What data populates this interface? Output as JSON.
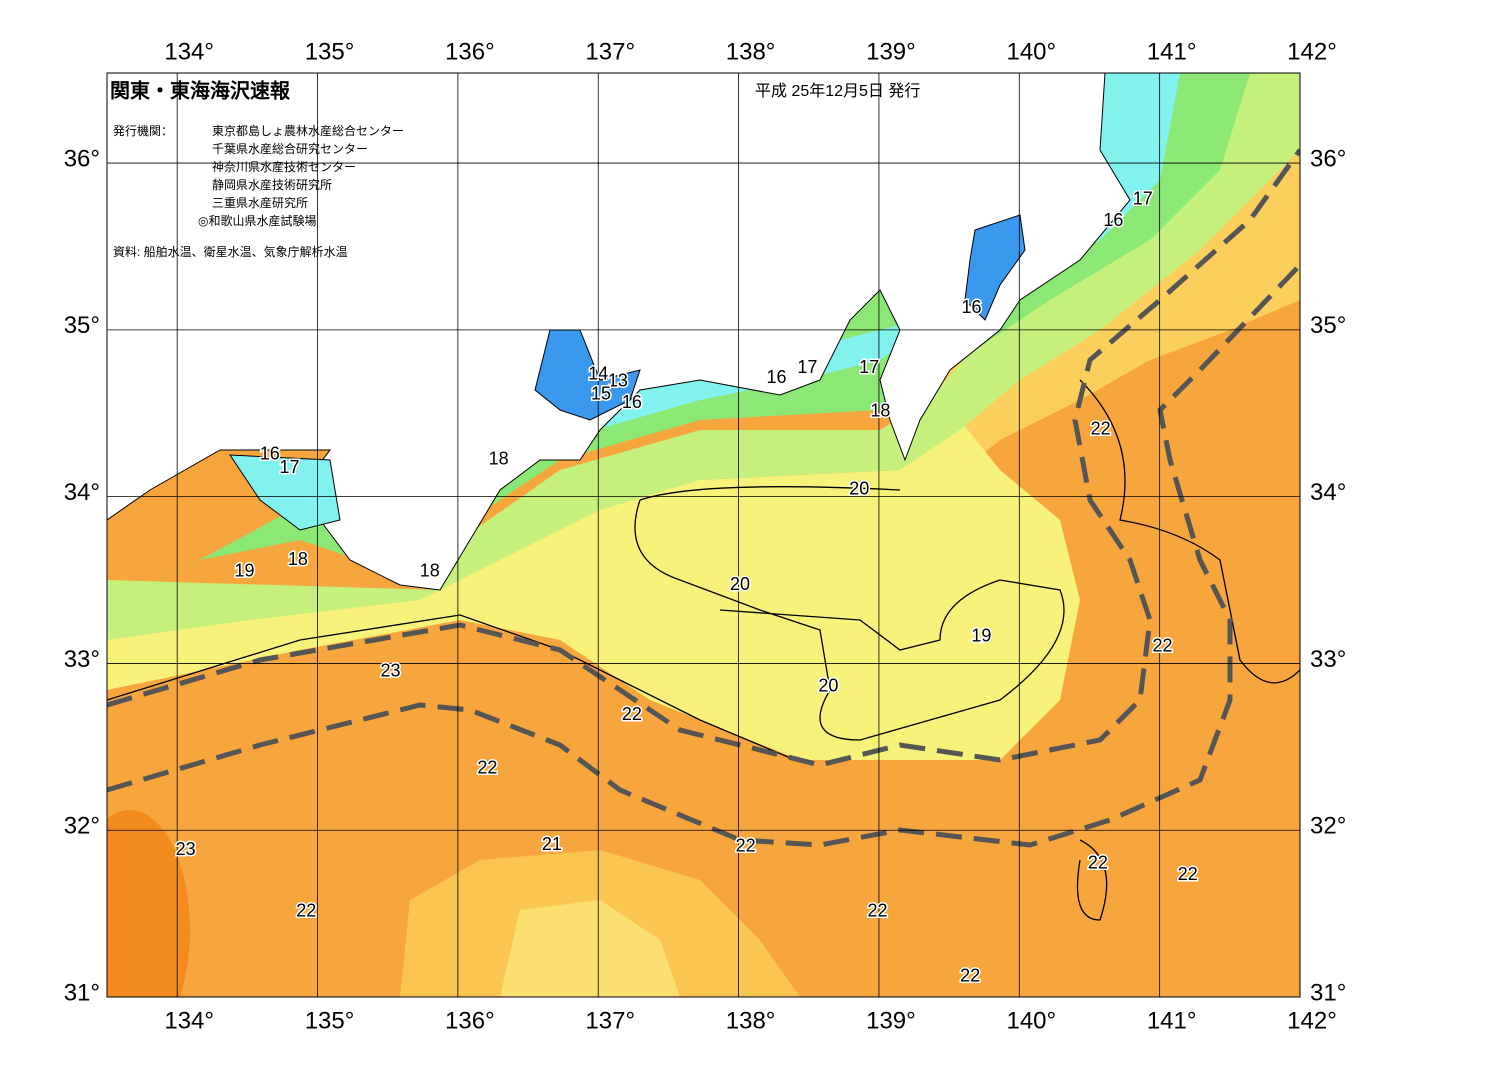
{
  "header": {
    "title": "関東・東海海沢速報",
    "date": "平成 25年12月5日 発行"
  },
  "issuers": {
    "label": "発行機関：",
    "items": [
      "東京都島しょ農林水産総合センター",
      "千葉県水産総合研究センター",
      "神奈川県水産技術センター",
      "静岡県水産技術研究所",
      "三重県水産研究所",
      "◎和歌山県水産試験場"
    ]
  },
  "source": "資料: 船舶水温、衛星水温、気象庁解析水温",
  "map": {
    "lonlim": [
      133.5,
      142.0
    ],
    "latlim": [
      31.0,
      36.54
    ],
    "lon_ticks": [
      {
        "value": 134,
        "label": "134°"
      },
      {
        "value": 135,
        "label": "135°"
      },
      {
        "value": 136,
        "label": "136°"
      },
      {
        "value": 137,
        "label": "137°"
      },
      {
        "value": 138,
        "label": "138°"
      },
      {
        "value": 139,
        "label": "139°"
      },
      {
        "value": 140,
        "label": "140°"
      },
      {
        "value": 141,
        "label": "141°"
      },
      {
        "value": 142,
        "label": "142°"
      }
    ],
    "lat_ticks": [
      {
        "value": 31,
        "label": "31°"
      },
      {
        "value": 32,
        "label": "32°"
      },
      {
        "value": 33,
        "label": "33°"
      },
      {
        "value": 34,
        "label": "34°"
      },
      {
        "value": 35,
        "label": "35°"
      },
      {
        "value": 36,
        "label": "36°"
      }
    ]
  },
  "contour_labels": [
    {
      "value": 17,
      "lon": 140.88,
      "lat": 35.78
    },
    {
      "value": 16,
      "lon": 140.67,
      "lat": 35.65
    },
    {
      "value": 16,
      "lon": 139.66,
      "lat": 35.13
    },
    {
      "value": 17,
      "lon": 138.49,
      "lat": 34.77
    },
    {
      "value": 16,
      "lon": 138.27,
      "lat": 34.71
    },
    {
      "value": 17,
      "lon": 138.93,
      "lat": 34.77
    },
    {
      "value": 18,
      "lon": 139.01,
      "lat": 34.51
    },
    {
      "value": 14,
      "lon": 137.0,
      "lat": 34.73
    },
    {
      "value": 13,
      "lon": 137.14,
      "lat": 34.69
    },
    {
      "value": 15,
      "lon": 137.02,
      "lat": 34.61
    },
    {
      "value": 16,
      "lon": 137.24,
      "lat": 34.56
    },
    {
      "value": 18,
      "lon": 136.29,
      "lat": 34.22
    },
    {
      "value": 16,
      "lon": 134.66,
      "lat": 34.25
    },
    {
      "value": 17,
      "lon": 134.8,
      "lat": 34.17
    },
    {
      "value": 20,
      "lon": 138.86,
      "lat": 34.04
    },
    {
      "value": 22,
      "lon": 140.58,
      "lat": 34.4
    },
    {
      "value": 18,
      "lon": 134.86,
      "lat": 33.62
    },
    {
      "value": 19,
      "lon": 134.48,
      "lat": 33.55
    },
    {
      "value": 18,
      "lon": 135.8,
      "lat": 33.55
    },
    {
      "value": 20,
      "lon": 138.01,
      "lat": 33.47
    },
    {
      "value": 19,
      "lon": 139.73,
      "lat": 33.16
    },
    {
      "value": 22,
      "lon": 141.02,
      "lat": 33.1
    },
    {
      "value": 23,
      "lon": 135.52,
      "lat": 32.95
    },
    {
      "value": 22,
      "lon": 137.24,
      "lat": 32.69
    },
    {
      "value": 20,
      "lon": 138.64,
      "lat": 32.86
    },
    {
      "value": 22,
      "lon": 136.21,
      "lat": 32.37
    },
    {
      "value": 21,
      "lon": 136.67,
      "lat": 31.91
    },
    {
      "value": 22,
      "lon": 138.05,
      "lat": 31.9
    },
    {
      "value": 23,
      "lon": 134.06,
      "lat": 31.88
    },
    {
      "value": 22,
      "lon": 140.56,
      "lat": 31.8
    },
    {
      "value": 22,
      "lon": 141.2,
      "lat": 31.73
    },
    {
      "value": 22,
      "lon": 134.92,
      "lat": 31.51
    },
    {
      "value": 22,
      "lon": 138.99,
      "lat": 31.51
    },
    {
      "value": 22,
      "lon": 139.65,
      "lat": 31.12
    }
  ]
}
